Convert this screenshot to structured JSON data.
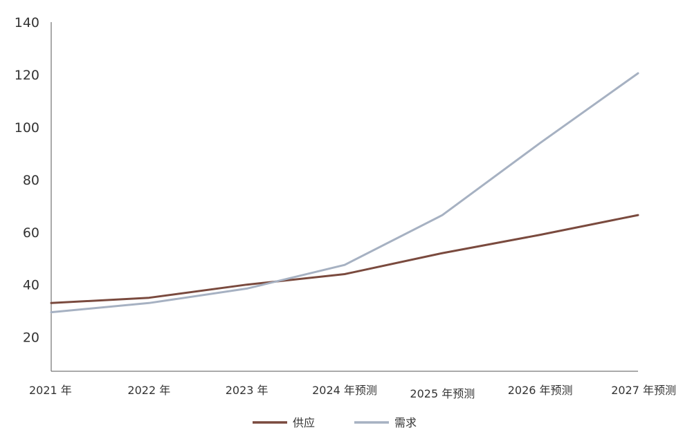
{
  "chart_data": {
    "type": "line",
    "categories": [
      "2021 年",
      "2022 年",
      "2023 年",
      "2024 年预测",
      "2025 年预测",
      "2026 年预测",
      "2027 年预测"
    ],
    "y_ticks": [
      "140",
      "120",
      "100",
      "80",
      "60",
      "40",
      "20"
    ],
    "y_tick_values": [
      140,
      120,
      100,
      80,
      60,
      40,
      20
    ],
    "ylim": [
      7,
      140
    ],
    "grid": false,
    "legend_position": "bottom",
    "title": "",
    "xlabel": "",
    "ylabel": "",
    "series": [
      {
        "name": "供应",
        "color": "#7a4a3e",
        "points": [
          [
            0,
            33
          ],
          [
            1,
            35
          ],
          [
            2,
            40
          ],
          [
            3,
            44
          ],
          [
            4,
            52
          ],
          [
            5,
            59
          ],
          [
            6,
            66.5
          ]
        ]
      },
      {
        "name": "需求",
        "color": "#a6b1c2",
        "points": [
          [
            0,
            29.5
          ],
          [
            1,
            33
          ],
          [
            2,
            38.5
          ],
          [
            3,
            47.5
          ],
          [
            4,
            66.5
          ],
          [
            5,
            94
          ],
          [
            6,
            120.5
          ]
        ]
      }
    ]
  }
}
